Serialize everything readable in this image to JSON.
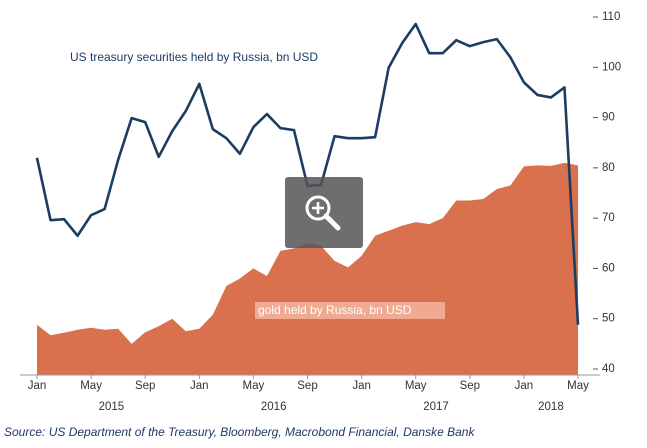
{
  "chart_data": {
    "type": "combo",
    "categories": [
      "Jan",
      null,
      null,
      null,
      "May",
      null,
      null,
      null,
      "Sep",
      null,
      null,
      null,
      "Jan",
      null,
      null,
      null,
      "May",
      null,
      null,
      null,
      "Sep",
      null,
      null,
      null,
      "Jan",
      null,
      null,
      null,
      "May",
      null,
      null,
      null,
      "Sep",
      null,
      null,
      null,
      "Jan",
      null,
      null,
      null,
      "May"
    ],
    "years": [
      "2015",
      "2016",
      "2017",
      "2018"
    ],
    "series": [
      {
        "name": "gold held by Russia, bn USD",
        "type": "area",
        "color": "#d9714f",
        "values": [
          48.8,
          46.7,
          47.2,
          47.8,
          48.2,
          47.8,
          48.0,
          45.0,
          47.3,
          48.5,
          50.0,
          47.5,
          48.0,
          50.8,
          56.5,
          58.0,
          60.0,
          58.5,
          63.5,
          64.0,
          65.0,
          64.5,
          61.5,
          60.2,
          62.5,
          66.5,
          67.5,
          68.5,
          69.2,
          68.8,
          70.0,
          73.5,
          73.5,
          73.8,
          75.8,
          76.5,
          80.3,
          80.5,
          80.4,
          81.0,
          80.5
        ]
      },
      {
        "name": "US treasury securities held by Russia, bn USD",
        "type": "line",
        "color": "#1c3d61",
        "values": [
          82.0,
          69.6,
          69.8,
          66.5,
          70.6,
          71.8,
          81.6,
          89.9,
          89.1,
          82.2,
          87.3,
          91.3,
          96.7,
          87.7,
          85.9,
          82.8,
          88.1,
          90.7,
          87.9,
          87.5,
          76.4,
          76.6,
          86.3,
          85.9,
          85.9,
          86.1,
          99.9,
          104.8,
          108.6,
          102.8,
          102.8,
          105.4,
          104.2,
          105.0,
          105.6,
          102.0,
          97.0,
          94.5,
          94.0,
          96.0,
          48.8
        ]
      }
    ],
    "ylim": [
      40,
      110
    ],
    "yticks": [
      40,
      50,
      60,
      70,
      80,
      90,
      100,
      110
    ],
    "source": "Source: US Department of the Treasury, Bloomberg, Macrobond Financial, Danske Bank"
  }
}
